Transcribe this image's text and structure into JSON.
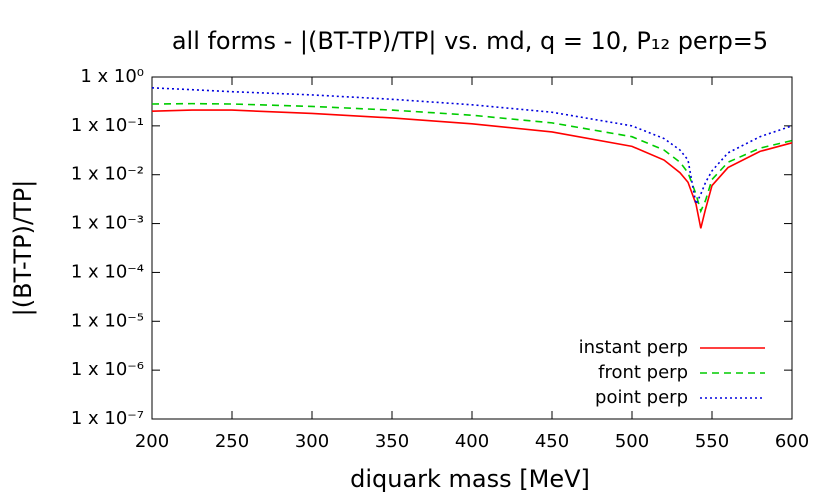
{
  "chart_data": {
    "type": "line",
    "title": "all forms - |(BT-TP)/TP| vs. md, q = 10, P₁₂ perp=5",
    "x_label": "diquark mass [MeV]",
    "y_label": "|(BT-TP)/TP|",
    "x": [
      200,
      225,
      250,
      300,
      350,
      400,
      450,
      500,
      520,
      530,
      535,
      540,
      543,
      546,
      550,
      560,
      580,
      600
    ],
    "series": [
      {
        "name": "instant perp",
        "color": "#ff0000",
        "values": [
          0.2,
          0.21,
          0.21,
          0.18,
          0.145,
          0.11,
          0.075,
          0.038,
          0.02,
          0.011,
          0.007,
          0.0025,
          0.0008,
          0.002,
          0.006,
          0.014,
          0.03,
          0.045
        ]
      },
      {
        "name": "front perp",
        "color": "#00cc00",
        "dash": "7,5",
        "values": [
          0.28,
          0.285,
          0.28,
          0.25,
          0.21,
          0.165,
          0.115,
          0.06,
          0.032,
          0.018,
          0.011,
          0.004,
          0.0018,
          0.003,
          0.008,
          0.018,
          0.035,
          0.05
        ]
      },
      {
        "name": "point perp",
        "color": "#0000dd",
        "dash": "2,3",
        "values": [
          0.6,
          0.55,
          0.5,
          0.43,
          0.35,
          0.27,
          0.19,
          0.1,
          0.055,
          0.032,
          0.02,
          0.0025,
          0.004,
          0.007,
          0.012,
          0.028,
          0.06,
          0.1
        ]
      }
    ],
    "xlim": [
      200,
      600
    ],
    "xticks": [
      200,
      250,
      300,
      350,
      400,
      450,
      500,
      550,
      600
    ],
    "ylim": [
      1e-07,
      1
    ],
    "yscale": "log",
    "yticks": [
      {
        "value": 1e-07,
        "label": "1 x 10⁻⁷"
      },
      {
        "value": 1e-06,
        "label": "1 x 10⁻⁶"
      },
      {
        "value": 1e-05,
        "label": "1 x 10⁻⁵"
      },
      {
        "value": 0.0001,
        "label": "1 x 10⁻⁴"
      },
      {
        "value": 0.001,
        "label": "1 x 10⁻³"
      },
      {
        "value": 0.01,
        "label": "1 x 10⁻²"
      },
      {
        "value": 0.1,
        "label": "1 x 10⁻¹"
      },
      {
        "value": 1,
        "label": "1 x 10⁰"
      }
    ],
    "grid": false,
    "legend": "bottom-right"
  }
}
